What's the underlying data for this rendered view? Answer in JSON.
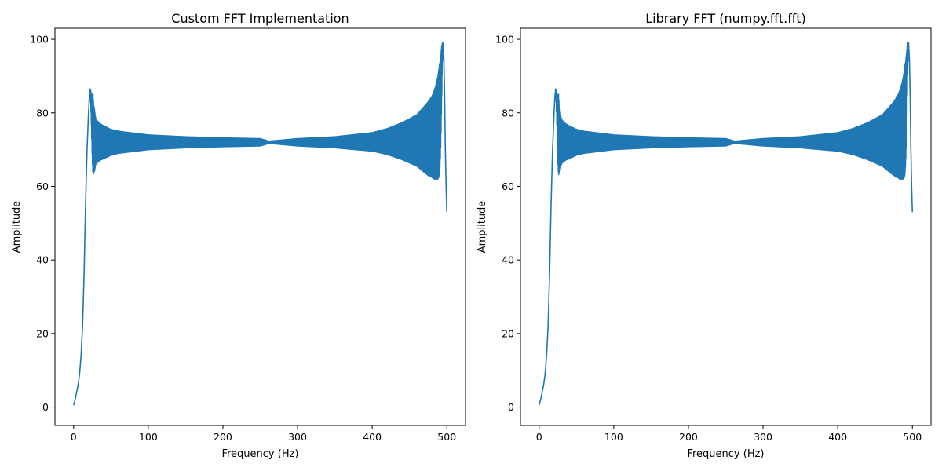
{
  "chart_data": [
    {
      "type": "line",
      "title": "Custom FFT Implementation",
      "xlabel": "Frequency (Hz)",
      "ylabel": "Amplitude",
      "xlim": [
        -25,
        525
      ],
      "ylim": [
        -5,
        103
      ],
      "xticks": [
        0,
        100,
        200,
        300,
        400,
        500
      ],
      "yticks": [
        0,
        20,
        40,
        60,
        80,
        100
      ],
      "grid": false,
      "color": "#1f77b4",
      "x_range": [
        0,
        500
      ],
      "x_points": [
        0,
        2,
        4,
        6,
        8,
        10,
        12,
        14,
        16,
        18,
        20,
        21,
        22,
        23,
        24,
        25,
        26,
        27,
        28,
        29,
        30,
        35,
        40,
        50,
        60,
        80,
        100,
        150,
        200,
        250,
        262,
        300,
        350,
        400,
        420,
        440,
        450,
        460,
        470,
        475,
        480,
        483,
        486,
        488,
        490,
        491,
        492,
        493,
        494,
        495,
        496,
        497,
        498,
        499,
        500
      ],
      "center_values": [
        0.5,
        2,
        4,
        6,
        9,
        14,
        22,
        36,
        55,
        70,
        80,
        84,
        86,
        84,
        80,
        76,
        74,
        73,
        72.5,
        72.3,
        72.2,
        72.1,
        72.0,
        72.0,
        72.0,
        72.0,
        72.0,
        72.0,
        72.0,
        72.0,
        72.0,
        72.0,
        72.0,
        72.1,
        72.2,
        72.3,
        72.4,
        72.5,
        72.8,
        73.0,
        73.5,
        74,
        75,
        76,
        78,
        80,
        84,
        90,
        96,
        98,
        95,
        85,
        70,
        60,
        53
      ],
      "oscillation_amplitude": [
        0,
        0,
        0,
        0,
        0,
        0,
        0,
        0,
        0,
        0,
        0,
        0,
        0.5,
        2,
        5,
        9,
        11,
        9,
        8.5,
        7,
        6,
        5,
        4.5,
        3.5,
        3,
        2.5,
        2,
        1.5,
        1.2,
        1.0,
        0.3,
        1.0,
        1.5,
        2.5,
        3.5,
        5,
        6,
        7,
        9,
        10,
        11,
        12,
        13,
        14,
        15,
        14,
        12,
        8,
        3,
        1,
        0,
        0,
        0,
        0,
        0
      ]
    },
    {
      "type": "line",
      "title": "Library FFT (numpy.fft.fft)",
      "xlabel": "Frequency (Hz)",
      "ylabel": "Amplitude",
      "xlim": [
        -25,
        525
      ],
      "ylim": [
        -5,
        103
      ],
      "xticks": [
        0,
        100,
        200,
        300,
        400,
        500
      ],
      "yticks": [
        0,
        20,
        40,
        60,
        80,
        100
      ],
      "grid": false,
      "color": "#1f77b4",
      "x_range": [
        0,
        500
      ],
      "x_points": [
        0,
        2,
        4,
        6,
        8,
        10,
        12,
        14,
        16,
        18,
        20,
        21,
        22,
        23,
        24,
        25,
        26,
        27,
        28,
        29,
        30,
        35,
        40,
        50,
        60,
        80,
        100,
        150,
        200,
        250,
        262,
        300,
        350,
        400,
        420,
        440,
        450,
        460,
        470,
        475,
        480,
        483,
        486,
        488,
        490,
        491,
        492,
        493,
        494,
        495,
        496,
        497,
        498,
        499,
        500
      ],
      "center_values": [
        0.5,
        2,
        4,
        6,
        9,
        14,
        22,
        36,
        55,
        70,
        80,
        84,
        86,
        84,
        80,
        76,
        74,
        73,
        72.5,
        72.3,
        72.2,
        72.1,
        72.0,
        72.0,
        72.0,
        72.0,
        72.0,
        72.0,
        72.0,
        72.0,
        72.0,
        72.0,
        72.0,
        72.1,
        72.2,
        72.3,
        72.4,
        72.5,
        72.8,
        73.0,
        73.5,
        74,
        75,
        76,
        78,
        80,
        84,
        90,
        96,
        98,
        95,
        85,
        70,
        60,
        53
      ],
      "oscillation_amplitude": [
        0,
        0,
        0,
        0,
        0,
        0,
        0,
        0,
        0,
        0,
        0,
        0,
        0.5,
        2,
        5,
        9,
        11,
        9,
        8.5,
        7,
        6,
        5,
        4.5,
        3.5,
        3,
        2.5,
        2,
        1.5,
        1.2,
        1.0,
        0.3,
        1.0,
        1.5,
        2.5,
        3.5,
        5,
        6,
        7,
        9,
        10,
        11,
        12,
        13,
        14,
        15,
        14,
        12,
        8,
        3,
        1,
        0,
        0,
        0,
        0,
        0
      ]
    }
  ]
}
